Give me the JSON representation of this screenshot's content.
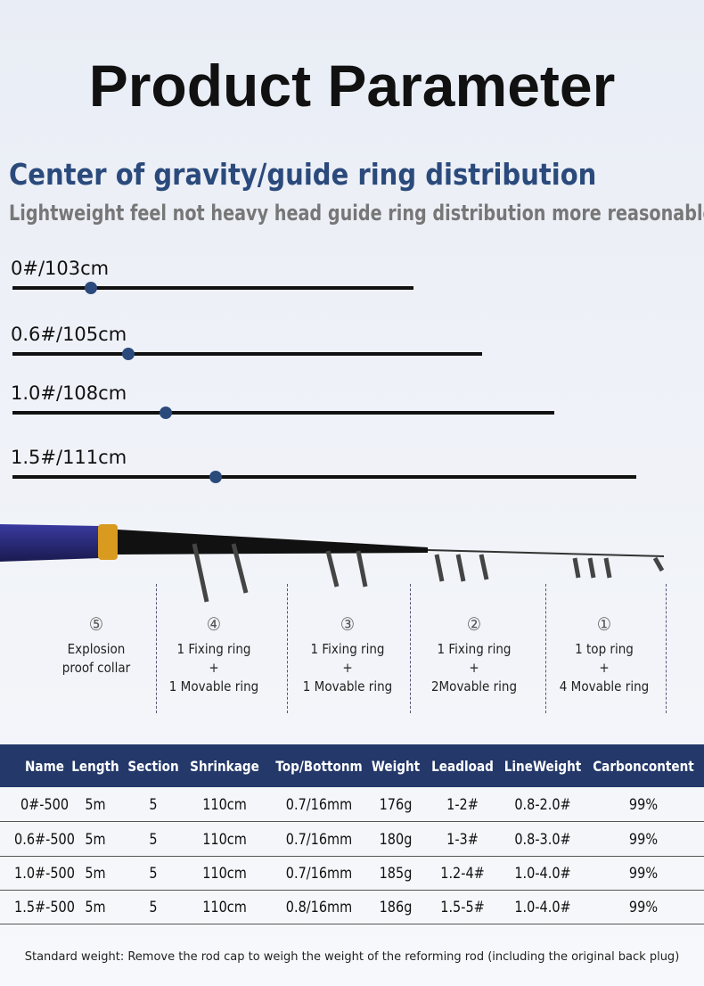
{
  "header": {
    "title": "Product Parameter",
    "heading": "Center of gravity/guide ring distribution",
    "subheading": "Lightweight feel not heavy head guide ring distribution more reasonable"
  },
  "rods": [
    "0#/103cm",
    "0.6#/105cm",
    "1.0#/108cm",
    "1.5#/111cm"
  ],
  "sections": [
    {
      "number": "⑤",
      "lines": [
        "Explosion",
        "proof collar"
      ]
    },
    {
      "number": "④",
      "lines": [
        "1 Fixing ring",
        "+",
        "1 Movable ring"
      ]
    },
    {
      "number": "③",
      "lines": [
        "1 Fixing ring",
        "+",
        "1 Movable ring"
      ]
    },
    {
      "number": "②",
      "lines": [
        "1 Fixing ring",
        "+",
        "2Movable ring"
      ]
    },
    {
      "number": "①",
      "lines": [
        "1 top ring",
        "+",
        "4 Movable ring"
      ]
    }
  ],
  "table": {
    "headers": [
      "Name",
      "Length",
      "Section",
      "Shrinkage",
      "Top/Bottonm",
      "Weight",
      "Leadload",
      "LineWeight",
      "Carboncontent"
    ],
    "rows": [
      [
        "0#-500",
        "5m",
        "5",
        "110cm",
        "0.7/16mm",
        "176g",
        "1-2#",
        "0.8-2.0#",
        "99%"
      ],
      [
        "0.6#-500",
        "5m",
        "5",
        "110cm",
        "0.7/16mm",
        "180g",
        "1-3#",
        "0.8-3.0#",
        "99%"
      ],
      [
        "1.0#-500",
        "5m",
        "5",
        "110cm",
        "0.7/16mm",
        "185g",
        "1.2-4#",
        "1.0-4.0#",
        "99%"
      ],
      [
        "1.5#-500",
        "5m",
        "5",
        "110cm",
        "0.8/16mm",
        "186g",
        "1.5-5#",
        "1.0-4.0#",
        "99%"
      ]
    ]
  },
  "footnote": "Standard weight: Remove the rod cap to weigh the weight of the reforming rod (including the original back plug)"
}
